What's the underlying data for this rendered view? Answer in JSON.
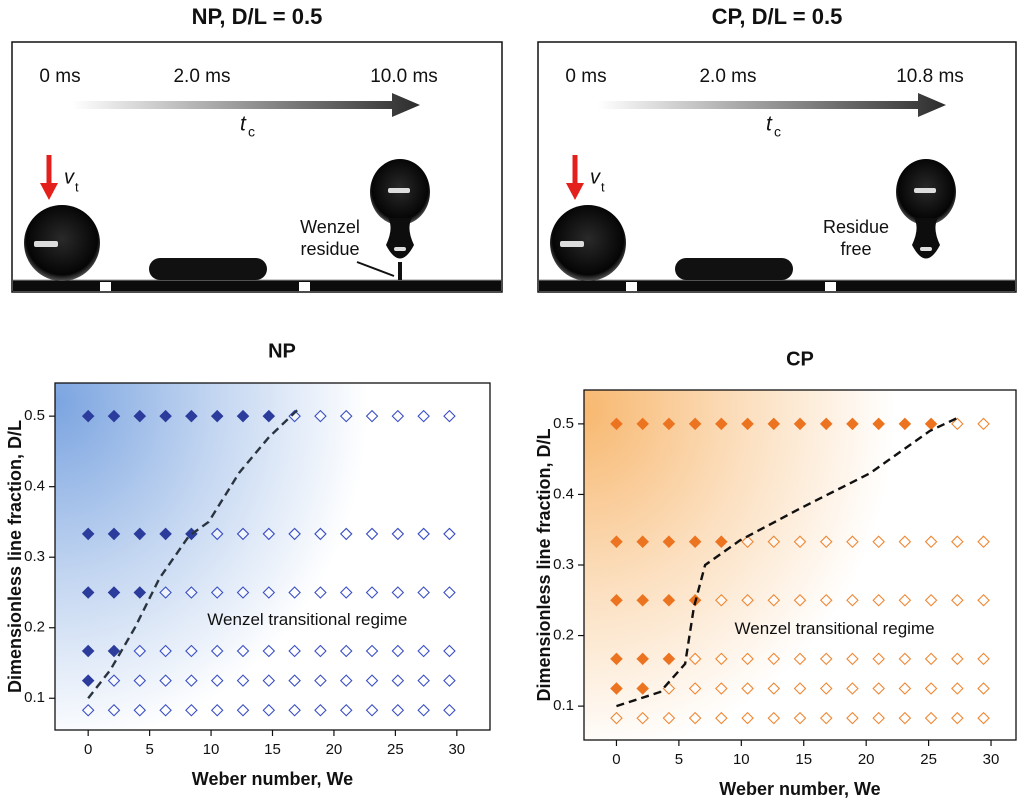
{
  "panels": [
    {
      "title": "NP, D/L = 0.5",
      "times": [
        "0 ms",
        "2.0 ms",
        "10.0 ms"
      ],
      "time_symbol": "t",
      "time_subscript": "c",
      "velocity_symbol": "v",
      "velocity_subscript": "t",
      "note": [
        "Wenzel",
        "residue"
      ]
    },
    {
      "title": "CP, D/L = 0.5",
      "times": [
        "0 ms",
        "2.0 ms",
        "10.8 ms"
      ],
      "time_symbol": "t",
      "time_subscript": "c",
      "velocity_symbol": "v",
      "velocity_subscript": "t",
      "note": [
        "Residue",
        "free"
      ]
    }
  ],
  "chart_data": [
    {
      "type": "scatter",
      "title": "NP",
      "xlabel": "Weber number, We",
      "ylabel": "Dimensionless line fraction, D/L",
      "annotation": "Wenzel transitional regime",
      "xlim": [
        -2.7,
        32.7
      ],
      "ylim": [
        0.055,
        0.547
      ],
      "xticks": [
        0,
        5,
        10,
        15,
        20,
        25,
        30
      ],
      "yticks": [
        0.1,
        0.2,
        0.3,
        0.4,
        0.5
      ],
      "shade_color": "#4f86d6",
      "series": [
        {
          "color": "#2b3c9c",
          "marker": "filled",
          "x": [
            0,
            2.1,
            4.2,
            6.3,
            8.4,
            10.5,
            12.6,
            14.7,
            0,
            2.1,
            4.2,
            6.3,
            8.4,
            0,
            2.1,
            4.2,
            0,
            2.1,
            0
          ],
          "y": [
            0.5,
            0.5,
            0.5,
            0.5,
            0.5,
            0.5,
            0.5,
            0.5,
            0.333,
            0.333,
            0.333,
            0.333,
            0.333,
            0.25,
            0.25,
            0.25,
            0.167,
            0.167,
            0.125
          ]
        },
        {
          "color": "#3a4fc4",
          "marker": "open",
          "x": [
            16.8,
            18.9,
            21,
            23.1,
            25.2,
            27.3,
            29.4,
            10.5,
            12.6,
            14.7,
            16.8,
            18.9,
            21,
            23.1,
            25.2,
            27.3,
            29.4,
            6.3,
            8.4,
            10.5,
            12.6,
            14.7,
            16.8,
            18.9,
            21,
            23.1,
            25.2,
            27.3,
            29.4,
            4.2,
            6.3,
            8.4,
            10.5,
            12.6,
            14.7,
            16.8,
            18.9,
            21,
            23.1,
            25.2,
            27.3,
            29.4,
            2.1,
            4.2,
            6.3,
            8.4,
            10.5,
            12.6,
            14.7,
            16.8,
            18.9,
            21,
            23.1,
            25.2,
            27.3,
            29.4,
            0,
            2.1,
            4.2,
            6.3,
            8.4,
            10.5,
            12.6,
            14.7,
            16.8,
            18.9,
            21,
            23.1,
            25.2,
            27.3,
            29.4
          ],
          "y": [
            0.5,
            0.5,
            0.5,
            0.5,
            0.5,
            0.5,
            0.5,
            0.333,
            0.333,
            0.333,
            0.333,
            0.333,
            0.333,
            0.333,
            0.333,
            0.333,
            0.333,
            0.25,
            0.25,
            0.25,
            0.25,
            0.25,
            0.25,
            0.25,
            0.25,
            0.25,
            0.25,
            0.25,
            0.25,
            0.167,
            0.167,
            0.167,
            0.167,
            0.167,
            0.167,
            0.167,
            0.167,
            0.167,
            0.167,
            0.167,
            0.167,
            0.167,
            0.125,
            0.125,
            0.125,
            0.125,
            0.125,
            0.125,
            0.125,
            0.125,
            0.125,
            0.125,
            0.125,
            0.125,
            0.125,
            0.125,
            0.083,
            0.083,
            0.083,
            0.083,
            0.083,
            0.083,
            0.083,
            0.083,
            0.083,
            0.083,
            0.083,
            0.083,
            0.083,
            0.083,
            0.083
          ]
        },
        {
          "color": "#2a3440",
          "marker": "dashed-line",
          "x": [
            0,
            1.8,
            3.8,
            5.8,
            8.2,
            9.8,
            12.3,
            14.7,
            17.1
          ],
          "y": [
            0.1,
            0.14,
            0.2,
            0.27,
            0.33,
            0.35,
            0.42,
            0.47,
            0.51
          ]
        }
      ]
    },
    {
      "type": "scatter",
      "title": "CP",
      "xlabel": "Weber number, We",
      "ylabel": "Dimensionless line fraction, D/L",
      "annotation": "Wenzel transitional regime",
      "xlim": [
        -2.6,
        32
      ],
      "ylim": [
        0.052,
        0.548
      ],
      "xticks": [
        0,
        5,
        10,
        15,
        20,
        25,
        30
      ],
      "yticks": [
        0.1,
        0.2,
        0.3,
        0.4,
        0.5
      ],
      "shade_color": "#f5a040",
      "series": [
        {
          "color": "#ec7420",
          "marker": "filled",
          "x": [
            0,
            2.1,
            4.2,
            6.3,
            8.4,
            10.5,
            12.6,
            14.7,
            16.8,
            18.9,
            21,
            23.1,
            25.2,
            0,
            2.1,
            4.2,
            6.3,
            8.4,
            0,
            2.1,
            4.2,
            6.3,
            0,
            2.1,
            4.2,
            0,
            2.1
          ],
          "y": [
            0.5,
            0.5,
            0.5,
            0.5,
            0.5,
            0.5,
            0.5,
            0.5,
            0.5,
            0.5,
            0.5,
            0.5,
            0.5,
            0.333,
            0.333,
            0.333,
            0.333,
            0.333,
            0.25,
            0.25,
            0.25,
            0.25,
            0.167,
            0.167,
            0.167,
            0.125,
            0.125
          ]
        },
        {
          "color": "#f08632",
          "marker": "open",
          "x": [
            27.3,
            29.4,
            10.5,
            12.6,
            14.7,
            16.8,
            18.9,
            21,
            23.1,
            25.2,
            27.3,
            29.4,
            8.4,
            10.5,
            12.6,
            14.7,
            16.8,
            18.9,
            21,
            23.1,
            25.2,
            27.3,
            29.4,
            6.3,
            8.4,
            10.5,
            12.6,
            14.7,
            16.8,
            18.9,
            21,
            23.1,
            25.2,
            27.3,
            29.4,
            4.2,
            6.3,
            8.4,
            10.5,
            12.6,
            14.7,
            16.8,
            18.9,
            21,
            23.1,
            25.2,
            27.3,
            29.4,
            0,
            2.1,
            4.2,
            6.3,
            8.4,
            10.5,
            12.6,
            14.7,
            16.8,
            18.9,
            21,
            23.1,
            25.2,
            27.3,
            29.4
          ],
          "y": [
            0.5,
            0.5,
            0.333,
            0.333,
            0.333,
            0.333,
            0.333,
            0.333,
            0.333,
            0.333,
            0.333,
            0.333,
            0.25,
            0.25,
            0.25,
            0.25,
            0.25,
            0.25,
            0.25,
            0.25,
            0.25,
            0.25,
            0.25,
            0.167,
            0.167,
            0.167,
            0.167,
            0.167,
            0.167,
            0.167,
            0.167,
            0.167,
            0.167,
            0.167,
            0.167,
            0.125,
            0.125,
            0.125,
            0.125,
            0.125,
            0.125,
            0.125,
            0.125,
            0.125,
            0.125,
            0.125,
            0.125,
            0.125,
            0.083,
            0.083,
            0.083,
            0.083,
            0.083,
            0.083,
            0.083,
            0.083,
            0.083,
            0.083,
            0.083,
            0.083,
            0.083,
            0.083,
            0.083
          ]
        },
        {
          "color": "#111111",
          "marker": "dashed-line",
          "x": [
            0,
            3.5,
            5.5,
            6.2,
            7.1,
            9.9,
            14.7,
            20.3,
            25.1,
            27.5
          ],
          "y": [
            0.1,
            0.12,
            0.16,
            0.24,
            0.3,
            0.335,
            0.38,
            0.43,
            0.49,
            0.51
          ]
        }
      ]
    }
  ]
}
